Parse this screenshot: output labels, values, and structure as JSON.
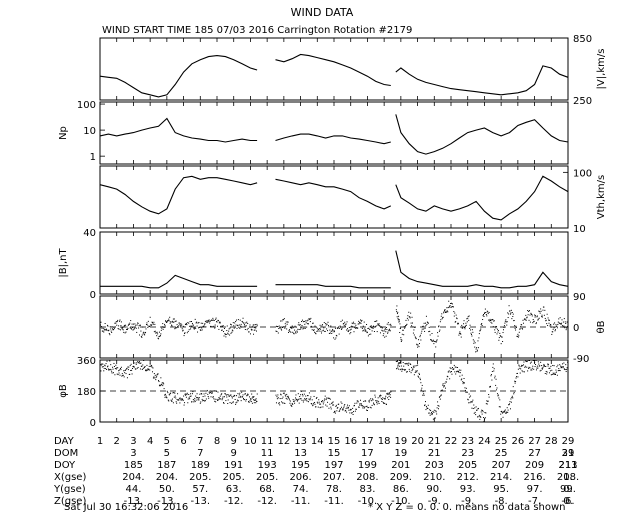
{
  "title": "WIND DATA",
  "subtitle": "WIND START TIME 185 07/03 2016 Carrington Rotation #2179",
  "footer": {
    "timestamp": "Sat Jul 30 16:32:06 2016",
    "note": "* X Y Z = 0. 0. 0. means no data shown"
  },
  "colors": {
    "ink": "#000000",
    "background": "#ffffff"
  },
  "chart_data": {
    "type": "line",
    "x_unit_label": "DAY",
    "xlim": [
      1,
      29
    ],
    "x_ticks": [
      1,
      2,
      3,
      4,
      5,
      6,
      7,
      8,
      9,
      10,
      11,
      12,
      13,
      14,
      15,
      16,
      17,
      18,
      19,
      20,
      21,
      22,
      23,
      24,
      25,
      26,
      27,
      28,
      29
    ],
    "gaps": [
      [
        10.4,
        11.5
      ],
      [
        18.4,
        18.7
      ]
    ],
    "panels": [
      {
        "id": "speed",
        "ylabel": "|V|,km/s",
        "ylabel_side": "right",
        "ylim": [
          250,
          850
        ],
        "scale": "linear",
        "tick_labels": [
          {
            "value": 850,
            "text": "850",
            "side": "right"
          },
          {
            "value": 250,
            "text": "250",
            "side": "right"
          }
        ],
        "x": [
          1.0,
          1.5,
          2.0,
          2.5,
          3.0,
          3.5,
          4.0,
          4.5,
          5.0,
          5.5,
          6.0,
          6.5,
          7.0,
          7.5,
          8.0,
          8.5,
          9.0,
          9.5,
          10.0,
          10.4,
          11.5,
          12.0,
          12.5,
          13.0,
          13.5,
          14.0,
          14.5,
          15.0,
          15.5,
          16.0,
          16.5,
          17.0,
          17.5,
          18.0,
          18.4,
          18.7,
          19.0,
          19.5,
          20.0,
          20.5,
          21.0,
          21.5,
          22.0,
          22.5,
          23.0,
          23.5,
          24.0,
          24.5,
          25.0,
          25.5,
          26.0,
          26.5,
          27.0,
          27.5,
          28.0,
          28.5,
          29.0
        ],
        "values": [
          480,
          470,
          460,
          420,
          370,
          320,
          300,
          280,
          300,
          400,
          520,
          600,
          640,
          670,
          680,
          670,
          640,
          600,
          560,
          540,
          640,
          620,
          650,
          690,
          680,
          660,
          640,
          620,
          590,
          560,
          520,
          480,
          430,
          400,
          390,
          520,
          560,
          500,
          450,
          420,
          400,
          380,
          360,
          350,
          340,
          330,
          320,
          310,
          300,
          310,
          320,
          340,
          400,
          580,
          560,
          500,
          470
        ]
      },
      {
        "id": "density",
        "ylabel": "Np",
        "ylabel_side": "left",
        "ylim": [
          0.5,
          120
        ],
        "scale": "log",
        "tick_labels": [
          {
            "value": 100,
            "text": "100",
            "side": "left"
          },
          {
            "value": 10,
            "text": "10",
            "side": "left"
          },
          {
            "value": 1,
            "text": "1",
            "side": "left"
          }
        ],
        "x": [
          1.0,
          1.5,
          2.0,
          2.5,
          3.0,
          3.5,
          4.0,
          4.5,
          5.0,
          5.5,
          6.0,
          6.5,
          7.0,
          7.5,
          8.0,
          8.5,
          9.0,
          9.5,
          10.0,
          10.4,
          11.5,
          12.0,
          12.5,
          13.0,
          13.5,
          14.0,
          14.5,
          15.0,
          15.5,
          16.0,
          16.5,
          17.0,
          17.5,
          18.0,
          18.4,
          18.7,
          19.0,
          19.5,
          20.0,
          20.5,
          21.0,
          21.5,
          22.0,
          22.5,
          23.0,
          23.5,
          24.0,
          24.5,
          25.0,
          25.5,
          26.0,
          26.5,
          27.0,
          27.5,
          28.0,
          28.5,
          29.0
        ],
        "values": [
          6,
          7,
          6,
          7,
          8,
          10,
          12,
          14,
          28,
          8,
          6,
          5,
          4.5,
          4,
          4,
          3.5,
          4,
          4.5,
          4,
          4,
          4,
          5,
          6,
          7,
          7,
          6,
          5,
          6,
          6,
          5,
          4.5,
          4,
          3.5,
          3,
          3.5,
          40,
          8,
          3,
          1.5,
          1.2,
          1.5,
          2,
          3,
          5,
          8,
          10,
          12,
          8,
          6,
          8,
          15,
          20,
          25,
          12,
          6,
          4,
          3.5
        ]
      },
      {
        "id": "thermal",
        "ylabel": "Vth,km/s",
        "ylabel_side": "right",
        "ylim": [
          10,
          130
        ],
        "scale": "log",
        "tick_labels": [
          {
            "value": 100,
            "text": "100",
            "side": "right"
          },
          {
            "value": 10,
            "text": "10",
            "side": "right"
          }
        ],
        "x": [
          1.0,
          1.5,
          2.0,
          2.5,
          3.0,
          3.5,
          4.0,
          4.5,
          5.0,
          5.5,
          6.0,
          6.5,
          7.0,
          7.5,
          8.0,
          8.5,
          9.0,
          9.5,
          10.0,
          10.4,
          11.5,
          12.0,
          12.5,
          13.0,
          13.5,
          14.0,
          14.5,
          15.0,
          15.5,
          16.0,
          16.5,
          17.0,
          17.5,
          18.0,
          18.4,
          18.7,
          19.0,
          19.5,
          20.0,
          20.5,
          21.0,
          21.5,
          22.0,
          22.5,
          23.0,
          23.5,
          24.0,
          24.5,
          25.0,
          25.5,
          26.0,
          26.5,
          27.0,
          27.5,
          28.0,
          28.5,
          29.0
        ],
        "values": [
          60,
          55,
          50,
          40,
          30,
          24,
          20,
          18,
          22,
          50,
          80,
          85,
          75,
          80,
          80,
          75,
          70,
          65,
          60,
          65,
          75,
          70,
          65,
          60,
          65,
          60,
          55,
          55,
          50,
          45,
          35,
          30,
          25,
          22,
          25,
          60,
          35,
          28,
          22,
          20,
          25,
          22,
          20,
          22,
          25,
          30,
          20,
          15,
          14,
          18,
          22,
          30,
          45,
          85,
          70,
          55,
          45
        ]
      },
      {
        "id": "bfield",
        "ylabel": "|B|,nT",
        "ylabel_side": "left",
        "ylim": [
          0,
          40
        ],
        "scale": "linear",
        "tick_labels": [
          {
            "value": 40,
            "text": "40",
            "side": "left"
          },
          {
            "value": 0,
            "text": "0",
            "side": "left"
          }
        ],
        "x": [
          1.0,
          1.5,
          2.0,
          2.5,
          3.0,
          3.5,
          4.0,
          4.5,
          5.0,
          5.5,
          6.0,
          6.5,
          7.0,
          7.5,
          8.0,
          8.5,
          9.0,
          9.5,
          10.0,
          10.4,
          11.5,
          12.0,
          12.5,
          13.0,
          13.5,
          14.0,
          14.5,
          15.0,
          15.5,
          16.0,
          16.5,
          17.0,
          17.5,
          18.0,
          18.4,
          18.7,
          19.0,
          19.5,
          20.0,
          20.5,
          21.0,
          21.5,
          22.0,
          22.5,
          23.0,
          23.5,
          24.0,
          24.5,
          25.0,
          25.5,
          26.0,
          26.5,
          27.0,
          27.5,
          28.0,
          28.5,
          29.0
        ],
        "values": [
          5,
          5,
          5,
          5,
          5,
          5,
          4,
          4,
          7,
          12,
          10,
          8,
          6,
          6,
          5,
          5,
          5,
          5,
          5,
          5,
          6,
          6,
          6,
          6,
          6,
          6,
          5,
          5,
          5,
          5,
          4,
          4,
          4,
          4,
          4,
          28,
          14,
          10,
          8,
          7,
          6,
          5,
          5,
          5,
          5,
          6,
          5,
          5,
          4,
          4,
          5,
          5,
          6,
          14,
          8,
          6,
          5
        ]
      },
      {
        "id": "theta",
        "ylabel": "θB",
        "ylabel_side": "right",
        "ylim": [
          -90,
          90
        ],
        "scale": "linear",
        "style": "scatter",
        "tick_labels": [
          {
            "value": 90,
            "text": "90",
            "side": "right"
          },
          {
            "value": 0,
            "text": "0",
            "side": "right"
          },
          {
            "value": -90,
            "text": "-90",
            "side": "right"
          }
        ],
        "reference_line": 0,
        "x": [
          1.0,
          1.5,
          2.0,
          2.5,
          3.0,
          3.5,
          4.0,
          4.5,
          5.0,
          5.5,
          6.0,
          6.5,
          7.0,
          7.5,
          8.0,
          8.5,
          9.0,
          9.5,
          10.0,
          10.4,
          11.5,
          12.0,
          12.5,
          13.0,
          13.5,
          14.0,
          14.5,
          15.0,
          15.5,
          16.0,
          16.5,
          17.0,
          17.5,
          18.0,
          18.4,
          18.7,
          19.0,
          19.5,
          20.0,
          20.5,
          21.0,
          21.5,
          22.0,
          22.5,
          23.0,
          23.5,
          24.0,
          24.5,
          25.0,
          25.5,
          26.0,
          26.5,
          27.0,
          27.5,
          28.0,
          28.5,
          29.0
        ],
        "values": [
          5,
          -10,
          15,
          -5,
          10,
          -15,
          20,
          -20,
          30,
          10,
          -10,
          15,
          -5,
          20,
          10,
          -15,
          5,
          15,
          -10,
          5,
          -5,
          10,
          -10,
          5,
          15,
          -10,
          5,
          -20,
          10,
          -5,
          15,
          -10,
          5,
          -15,
          10,
          60,
          -30,
          40,
          -50,
          20,
          -60,
          45,
          70,
          -20,
          30,
          -70,
          50,
          10,
          -40,
          60,
          -30,
          40,
          20,
          50,
          -10,
          15,
          5
        ]
      },
      {
        "id": "phi",
        "ylabel": "φB",
        "ylabel_side": "left",
        "ylim": [
          0,
          360
        ],
        "scale": "linear",
        "style": "scatter",
        "tick_labels": [
          {
            "value": 360,
            "text": "360",
            "side": "left"
          },
          {
            "value": 180,
            "text": "180",
            "side": "left"
          },
          {
            "value": 0,
            "text": "0",
            "side": "left"
          }
        ],
        "reference_line": 180,
        "x": [
          1.0,
          1.5,
          2.0,
          2.5,
          3.0,
          3.5,
          4.0,
          4.5,
          5.0,
          5.5,
          6.0,
          6.5,
          7.0,
          7.5,
          8.0,
          8.5,
          9.0,
          9.5,
          10.0,
          10.4,
          11.5,
          12.0,
          12.5,
          13.0,
          13.5,
          14.0,
          14.5,
          15.0,
          15.5,
          16.0,
          16.5,
          17.0,
          17.5,
          18.0,
          18.4,
          18.7,
          19.0,
          19.5,
          20.0,
          20.5,
          21.0,
          21.5,
          22.0,
          22.5,
          23.0,
          23.5,
          24.0,
          24.5,
          25.0,
          25.5,
          26.0,
          26.5,
          27.0,
          27.5,
          28.0,
          28.5,
          29.0
        ],
        "values": [
          320,
          330,
          300,
          280,
          320,
          340,
          310,
          250,
          150,
          140,
          130,
          150,
          140,
          160,
          150,
          140,
          130,
          150,
          140,
          150,
          130,
          140,
          120,
          150,
          140,
          110,
          130,
          80,
          100,
          60,
          120,
          90,
          140,
          130,
          150,
          340,
          330,
          320,
          300,
          80,
          40,
          200,
          310,
          300,
          150,
          60,
          30,
          320,
          40,
          100,
          300,
          330,
          340,
          320,
          300,
          310,
          320
        ]
      }
    ],
    "table": {
      "columns_x": [
        1,
        2,
        3,
        4,
        5,
        6,
        7,
        8,
        9,
        10,
        11,
        12,
        13,
        14,
        15,
        16,
        17,
        18,
        19,
        20,
        21,
        22,
        23,
        24,
        25,
        26,
        27,
        28,
        29
      ],
      "rows": [
        {
          "label": "DAY",
          "values": [
            "1",
            "2",
            "3",
            "4",
            "5",
            "6",
            "7",
            "8",
            "9",
            "10",
            "11",
            "12",
            "13",
            "14",
            "15",
            "16",
            "17",
            "18",
            "19",
            "20",
            "21",
            "22",
            "23",
            "24",
            "25",
            "26",
            "27",
            "28",
            "29"
          ],
          "step": 1
        },
        {
          "label": "DOM",
          "values": [
            "3",
            "5",
            "7",
            "9",
            "11",
            "13",
            "15",
            "17",
            "19",
            "21",
            "23",
            "25",
            "27",
            "29",
            "31"
          ],
          "step": 2
        },
        {
          "label": "DOY",
          "values": [
            "185",
            "187",
            "189",
            "191",
            "193",
            "195",
            "197",
            "199",
            "201",
            "203",
            "205",
            "207",
            "209",
            "211",
            "213"
          ],
          "step": 2
        },
        {
          "label": "X(gse)",
          "values": [
            "204.",
            "204.",
            "205.",
            "205.",
            "205.",
            "206.",
            "207.",
            "208.",
            "209.",
            "210.",
            "212.",
            "214.",
            "216.",
            "218.",
            "0."
          ],
          "step": 2
        },
        {
          "label": "Y(gse)",
          "values": [
            "44.",
            "50.",
            "57.",
            "63.",
            "68.",
            "74.",
            "78.",
            "83.",
            "86.",
            "90.",
            "93.",
            "95.",
            "97.",
            "99.",
            "0."
          ],
          "step": 2
        },
        {
          "label": "Z(gse)",
          "values": [
            "-13.",
            "-13.",
            "-13.",
            "-12.",
            "-12.",
            "-11.",
            "-11.",
            "-10.",
            "-10.",
            "-9.",
            "-9.",
            "-8.",
            "-7.",
            "-6.",
            "0."
          ],
          "step": 2
        }
      ]
    }
  }
}
